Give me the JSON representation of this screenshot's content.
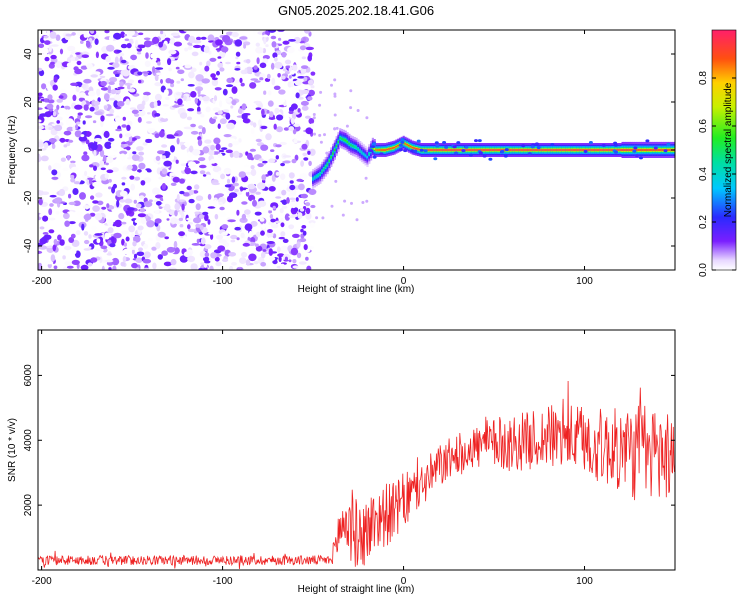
{
  "title": "GN05.2025.202.18.41.G06",
  "colors": {
    "snr_line": "#ee2222",
    "spectrogram_low": "#7a1fff",
    "spectrogram_high": "#ff1f1f"
  },
  "chart_data": [
    {
      "type": "heatmap",
      "xlabel": "Height of straight line (km)",
      "ylabel": "Frequency (Hz)",
      "xlim": [
        -202,
        150
      ],
      "ylim": [
        -50,
        50
      ],
      "xticks": [
        -200,
        -100,
        0,
        100
      ],
      "yticks": [
        -40,
        -20,
        0,
        20,
        40
      ],
      "colorbar": {
        "label": "Normalized spectral amplitude",
        "range": [
          0,
          1
        ],
        "ticks": [
          "0.0",
          "0.2",
          "0.4",
          "0.6",
          "0.8"
        ]
      },
      "noise_region": {
        "x_range": [
          -202,
          -50
        ],
        "freq_range": [
          -50,
          50
        ],
        "amplitude_range": [
          0.0,
          0.15
        ]
      },
      "signal_track": {
        "x": [
          -50,
          -46,
          -42,
          -38,
          -35,
          -32,
          -29,
          -26,
          -23,
          -20,
          -17,
          -15,
          -10,
          -5,
          0,
          5,
          10,
          20,
          40,
          60,
          80,
          100,
          120,
          130,
          140,
          150
        ],
        "freq": [
          -12,
          -10,
          -6,
          0,
          5,
          4,
          2,
          1,
          -1,
          -3,
          1,
          0,
          0,
          1,
          3,
          1,
          0,
          0,
          0,
          0,
          0,
          0,
          0,
          0,
          0,
          0
        ],
        "amplitude": [
          0.4,
          0.45,
          0.5,
          0.55,
          0.5,
          0.55,
          0.5,
          0.45,
          0.4,
          0.35,
          0.6,
          0.85,
          0.9,
          0.9,
          0.85,
          0.9,
          0.95,
          0.95,
          0.95,
          0.95,
          0.95,
          0.95,
          0.95,
          0.9,
          0.9,
          0.9
        ]
      }
    },
    {
      "type": "line",
      "xlabel": "Height of straight line (km)",
      "ylabel": "SNR (10 * v/v)",
      "xlim": [
        -202,
        150
      ],
      "ylim": [
        0,
        7400
      ],
      "xticks": [
        -200,
        -100,
        0,
        100
      ],
      "yticks": [
        2000,
        4000,
        6000
      ],
      "series": [
        {
          "x": [
            -202,
            -180,
            -150,
            -120,
            -90,
            -60,
            -40,
            -35,
            -30,
            -25,
            -20,
            -15,
            -10,
            -5,
            0,
            10,
            20,
            30,
            40,
            50,
            60,
            70,
            80,
            90,
            100,
            110,
            120,
            130,
            140,
            150
          ],
          "mean": [
            300,
            300,
            300,
            300,
            300,
            300,
            300,
            1300,
            1500,
            1000,
            1200,
            1600,
            1700,
            1800,
            2100,
            2600,
            3200,
            3600,
            3800,
            3900,
            3900,
            4000,
            4100,
            4100,
            4000,
            3800,
            3700,
            3600,
            3600,
            3600
          ],
          "spread": [
            150,
            150,
            150,
            150,
            150,
            150,
            150,
            900,
            1300,
            1000,
            1100,
            1000,
            1000,
            900,
            900,
            700,
            700,
            600,
            700,
            800,
            900,
            900,
            1000,
            1000,
            1100,
            1200,
            1300,
            1600,
            1500,
            1300
          ]
        }
      ]
    }
  ]
}
